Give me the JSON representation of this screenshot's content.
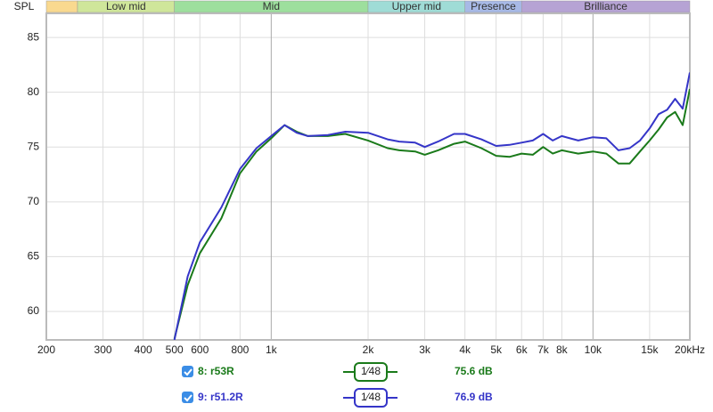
{
  "chart_data": {
    "type": "line",
    "y_label": "SPL",
    "xscale": "log",
    "xlim": [
      200,
      20000
    ],
    "ylim": [
      57.4,
      87.2
    ],
    "grid": true,
    "xticks": [
      200,
      300,
      400,
      500,
      600,
      800,
      {
        "value": 1000,
        "label": "1k"
      },
      {
        "value": 2000,
        "label": "2k"
      },
      {
        "value": 3000,
        "label": "3k"
      },
      {
        "value": 4000,
        "label": "4k"
      },
      {
        "value": 5000,
        "label": "5k"
      },
      {
        "value": 6000,
        "label": "6k"
      },
      {
        "value": 7000,
        "label": "7k"
      },
      {
        "value": 8000,
        "label": "8k"
      },
      {
        "value": 10000,
        "label": "10k"
      },
      {
        "value": 15000,
        "label": "15k"
      },
      {
        "value": 20000,
        "label": "20kHz"
      }
    ],
    "yticks": [
      60,
      65,
      70,
      75,
      80,
      85
    ],
    "bands": [
      {
        "label": null,
        "start": 200,
        "end": 250,
        "color": "#f9d98f"
      },
      {
        "label": "Low mid",
        "start": 250,
        "end": 500,
        "color": "#cfe69a"
      },
      {
        "label": "Mid",
        "start": 500,
        "end": 2000,
        "color": "#9ddf9d"
      },
      {
        "label": "Upper mid",
        "start": 2000,
        "end": 4000,
        "color": "#9fdcd6"
      },
      {
        "label": "Presence",
        "start": 4000,
        "end": 6000,
        "color": "#a7b9e6"
      },
      {
        "label": "Brilliance",
        "start": 6000,
        "end": 20000,
        "color": "#b6a3d4"
      }
    ],
    "x": [
      500,
      550,
      600,
      700,
      800,
      900,
      1000,
      1100,
      1200,
      1300,
      1500,
      1700,
      2000,
      2300,
      2500,
      2800,
      3000,
      3300,
      3700,
      4000,
      4500,
      5000,
      5500,
      6000,
      6500,
      7000,
      7500,
      8000,
      9000,
      10000,
      11000,
      12000,
      13000,
      14000,
      15000,
      16000,
      17000,
      18000,
      19000,
      20000
    ],
    "series": [
      {
        "name": "8: r53R",
        "color": "#1a7a1a",
        "checked": true,
        "smoothing": "1⁄48",
        "level": "75.6 dB",
        "values": [
          57.5,
          62.4,
          65.3,
          68.5,
          72.6,
          74.6,
          75.8,
          77.0,
          76.4,
          76.0,
          76.0,
          76.2,
          75.6,
          74.9,
          74.7,
          74.6,
          74.3,
          74.7,
          75.3,
          75.5,
          74.9,
          74.2,
          74.1,
          74.4,
          74.3,
          75.0,
          74.4,
          74.7,
          74.4,
          74.6,
          74.4,
          73.5,
          73.5,
          74.6,
          75.6,
          76.6,
          77.7,
          78.2,
          77.0,
          80.3
        ]
      },
      {
        "name": "9: r51.2R",
        "color": "#3535c8",
        "checked": true,
        "smoothing": "1⁄48",
        "level": "76.9 dB",
        "values": [
          57.4,
          63.2,
          66.3,
          69.5,
          73.0,
          74.9,
          76.0,
          77.0,
          76.3,
          76.0,
          76.1,
          76.4,
          76.3,
          75.7,
          75.5,
          75.4,
          75.0,
          75.5,
          76.2,
          76.2,
          75.7,
          75.1,
          75.2,
          75.4,
          75.6,
          76.2,
          75.6,
          76.0,
          75.6,
          75.9,
          75.8,
          74.7,
          74.9,
          75.6,
          76.7,
          78.0,
          78.4,
          79.4,
          78.5,
          81.8
        ]
      }
    ]
  }
}
